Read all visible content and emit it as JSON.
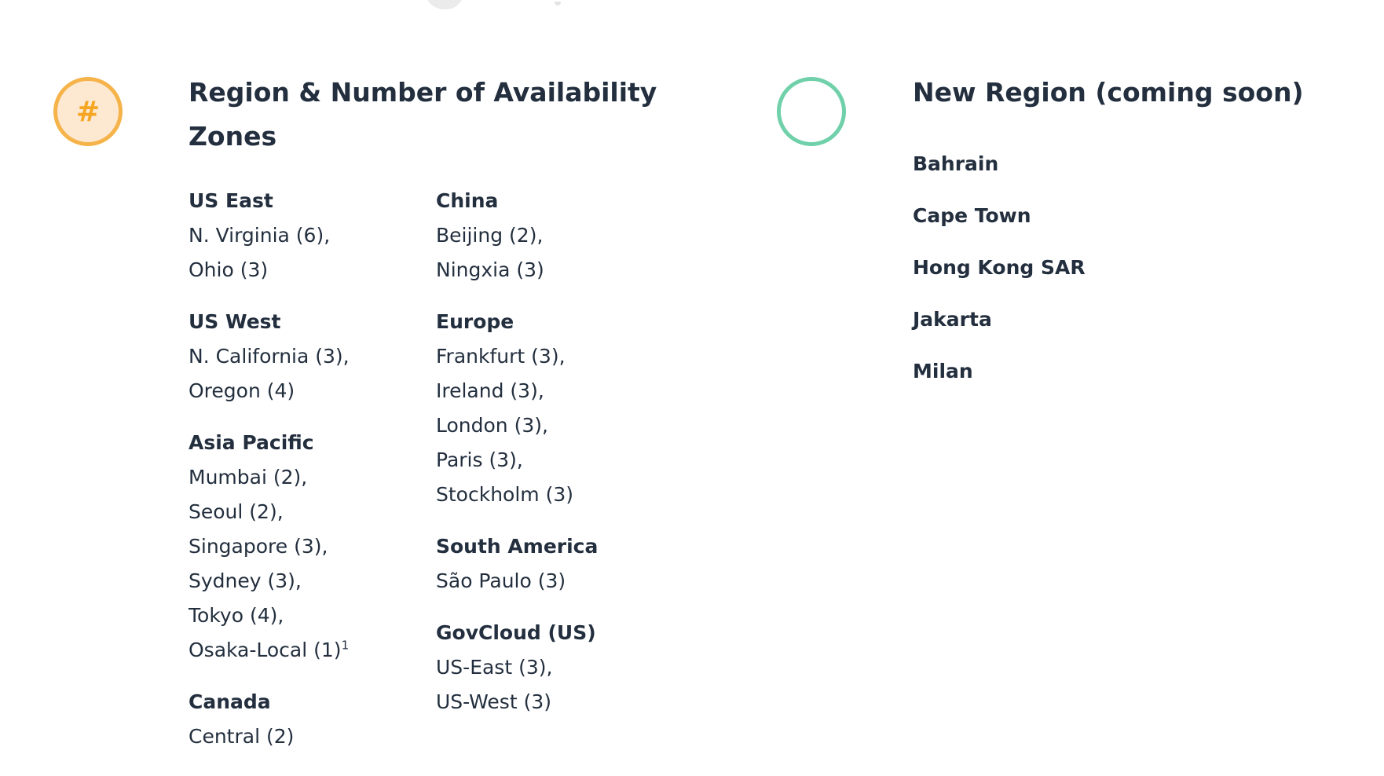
{
  "left_section": {
    "icon_symbol": "#",
    "title": "Region & Number of Availability Zones",
    "columns": [
      [
        {
          "name": "US East",
          "locations": [
            "N. Virginia (6),",
            "Ohio (3)"
          ]
        },
        {
          "name": "US West",
          "locations": [
            "N. California (3),",
            "Oregon (4)"
          ]
        },
        {
          "name": "Asia Pacific",
          "locations": [
            "Mumbai (2),",
            "Seoul (2),",
            "Singapore (3),",
            "Sydney (3),",
            "Tokyo (4),",
            "Osaka-Local (1)"
          ],
          "footnote": "1"
        },
        {
          "name": "Canada",
          "locations": [
            "Central (2)"
          ]
        }
      ],
      [
        {
          "name": "China",
          "locations": [
            "Beijing (2),",
            "Ningxia (3)"
          ]
        },
        {
          "name": "Europe",
          "locations": [
            "Frankfurt (3),",
            "Ireland (3),",
            "London (3),",
            "Paris (3),",
            "Stockholm (3)"
          ]
        },
        {
          "name": "South America",
          "locations": [
            "São Paulo (3)"
          ]
        },
        {
          "name": "GovCloud (US)",
          "locations": [
            "US-East (3),",
            "US-West (3)"
          ]
        }
      ]
    ]
  },
  "right_section": {
    "title": "New Region (coming soon)",
    "items": [
      "Bahrain",
      "Cape Town",
      "Hong Kong SAR",
      "Jakarta",
      "Milan"
    ]
  },
  "colors": {
    "text": "#232f3e",
    "hash_icon_border": "#f5b34a",
    "hash_icon_fill": "#fde8d2",
    "hash_icon_symbol": "#f5a623",
    "ring_icon_border": "#6fd0a9"
  },
  "icons": {
    "left": "hash-circle-icon",
    "right": "ring-circle-icon"
  }
}
